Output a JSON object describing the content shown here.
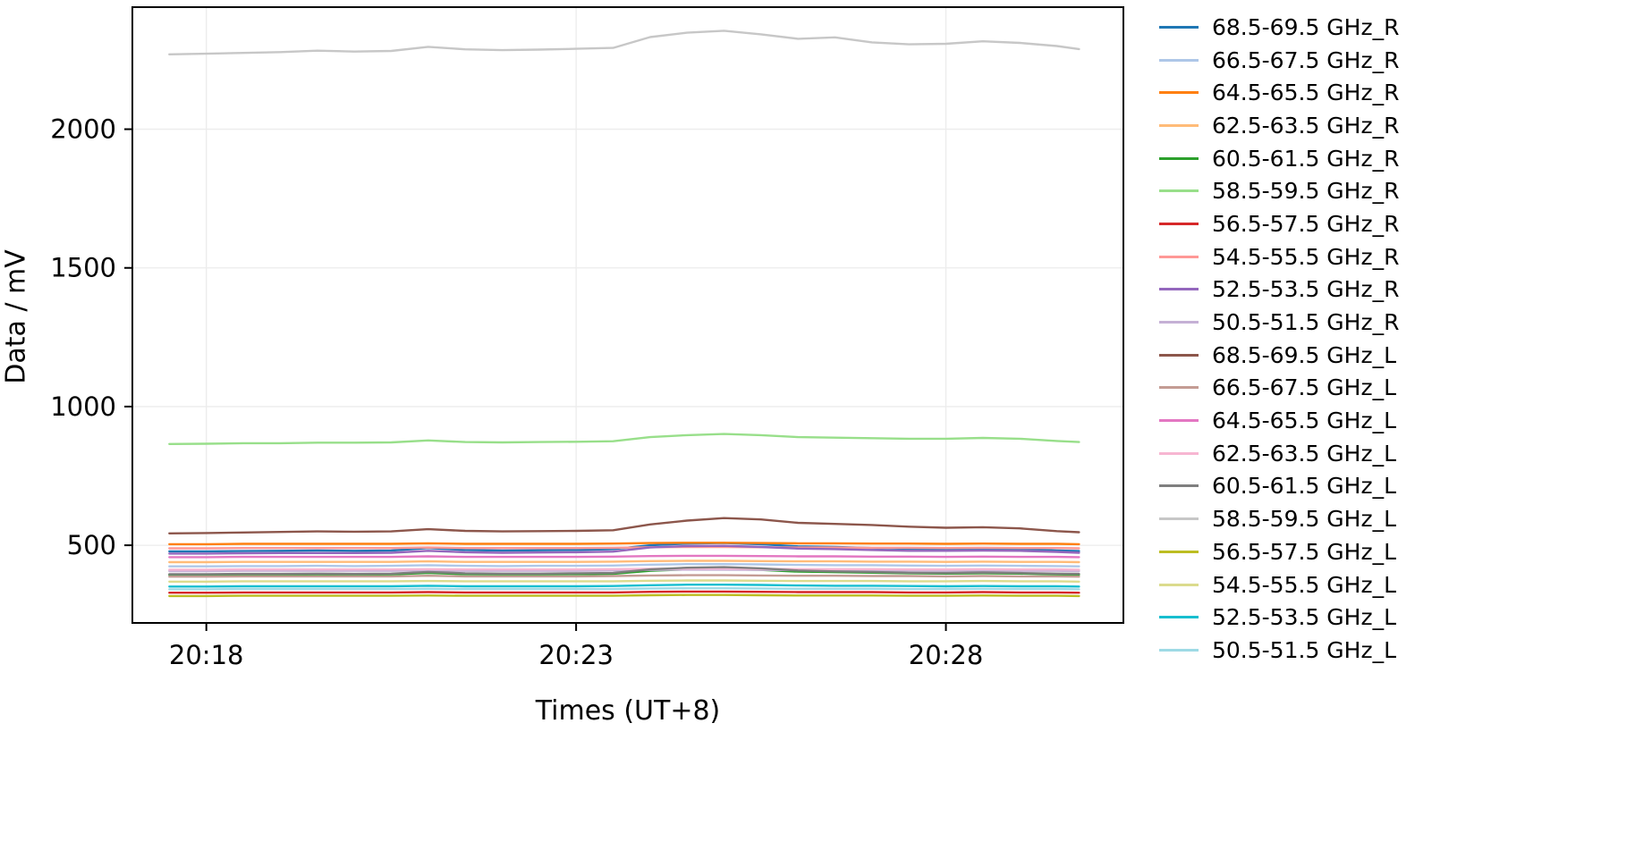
{
  "chart_data": {
    "type": "line",
    "title": "",
    "xlabel": "Times (UT+8)",
    "ylabel": "Data / mV",
    "grid": true,
    "legend_position": "right-outside",
    "x_unit": "minutes after 20:00 (UT+8)",
    "x_range": [
      17.0,
      30.4
    ],
    "y_range": [
      220,
      2440
    ],
    "x_ticks": [
      {
        "t": 18,
        "label": "20:18"
      },
      {
        "t": 23,
        "label": "20:23"
      },
      {
        "t": 28,
        "label": "20:28"
      }
    ],
    "y_ticks": [
      500,
      1000,
      1500,
      2000
    ],
    "x": [
      17.5,
      18,
      18.5,
      19,
      19.5,
      20,
      20.5,
      21,
      21.5,
      22,
      22.5,
      23,
      23.5,
      24,
      24.5,
      25,
      25.5,
      26,
      26.5,
      27,
      27.5,
      28,
      28.5,
      29,
      29.5,
      29.8
    ],
    "series": [
      {
        "name": "68.5-69.5 GHz_R",
        "color": "#1f77b4",
        "values": [
          478,
          478,
          479,
          480,
          481,
          480,
          481,
          490,
          483,
          481,
          482,
          483,
          486,
          500,
          506,
          508,
          504,
          496,
          494,
          490,
          487,
          486,
          488,
          486,
          481,
          479
        ]
      },
      {
        "name": "66.5-67.5 GHz_R",
        "color": "#aec7e8",
        "values": [
          424,
          424,
          425,
          425,
          426,
          425,
          426,
          428,
          426,
          425,
          426,
          426,
          427,
          430,
          432,
          432,
          431,
          429,
          428,
          428,
          427,
          426,
          427,
          426,
          425,
          424
        ]
      },
      {
        "name": "64.5-65.5 GHz_R",
        "color": "#ff7f0e",
        "values": [
          504,
          504,
          505,
          505,
          505,
          505,
          505,
          507,
          505,
          505,
          505,
          505,
          506,
          508,
          509,
          509,
          508,
          507,
          507,
          506,
          506,
          505,
          506,
          505,
          505,
          504
        ]
      },
      {
        "name": "62.5-63.5 GHz_R",
        "color": "#ffbb78",
        "values": [
          439,
          439,
          440,
          440,
          440,
          440,
          440,
          442,
          440,
          440,
          440,
          440,
          441,
          443,
          444,
          444,
          443,
          442,
          442,
          441,
          441,
          440,
          441,
          440,
          440,
          439
        ]
      },
      {
        "name": "60.5-61.5 GHz_R",
        "color": "#2ca02c",
        "values": [
          393,
          393,
          394,
          394,
          395,
          394,
          395,
          400,
          396,
          395,
          395,
          396,
          397,
          408,
          413,
          414,
          411,
          405,
          403,
          401,
          399,
          398,
          399,
          398,
          395,
          394
        ]
      },
      {
        "name": "58.5-59.5 GHz_R",
        "color": "#98df8a",
        "values": [
          865,
          866,
          868,
          868,
          870,
          870,
          871,
          878,
          872,
          871,
          872,
          873,
          875,
          890,
          897,
          901,
          897,
          890,
          888,
          886,
          884,
          884,
          887,
          884,
          876,
          872
        ]
      },
      {
        "name": "56.5-57.5 GHz_R",
        "color": "#d62728",
        "values": [
          329,
          329,
          330,
          330,
          330,
          330,
          330,
          331,
          330,
          330,
          330,
          330,
          330,
          332,
          333,
          333,
          332,
          331,
          331,
          331,
          330,
          330,
          331,
          330,
          330,
          329
        ]
      },
      {
        "name": "54.5-55.5 GHz_R",
        "color": "#ff9896",
        "values": [
          489,
          489,
          490,
          490,
          490,
          490,
          490,
          492,
          490,
          490,
          490,
          490,
          491,
          493,
          494,
          494,
          493,
          492,
          492,
          491,
          491,
          490,
          491,
          490,
          490,
          489
        ]
      },
      {
        "name": "52.5-53.5 GHz_R",
        "color": "#9467bd",
        "values": [
          470,
          470,
          471,
          472,
          472,
          472,
          473,
          480,
          475,
          473,
          474,
          475,
          477,
          492,
          497,
          498,
          494,
          488,
          486,
          483,
          480,
          480,
          481,
          480,
          476,
          473
        ]
      },
      {
        "name": "50.5-51.5 GHz_R",
        "color": "#c5b0d5",
        "values": [
          407,
          407,
          408,
          408,
          408,
          408,
          408,
          410,
          408,
          408,
          408,
          408,
          409,
          411,
          412,
          412,
          411,
          410,
          410,
          409,
          409,
          408,
          409,
          408,
          408,
          407
        ]
      },
      {
        "name": "68.5-69.5 GHz_L",
        "color": "#8c564b",
        "values": [
          543,
          544,
          546,
          548,
          550,
          549,
          550,
          558,
          552,
          550,
          551,
          552,
          554,
          575,
          589,
          598,
          593,
          581,
          577,
          573,
          567,
          563,
          565,
          561,
          551,
          547
        ]
      },
      {
        "name": "66.5-67.5 GHz_L",
        "color": "#c49c94",
        "values": [
          387,
          387,
          388,
          388,
          388,
          388,
          388,
          390,
          388,
          388,
          388,
          388,
          389,
          391,
          392,
          392,
          391,
          390,
          390,
          389,
          389,
          388,
          389,
          388,
          388,
          387
        ]
      },
      {
        "name": "64.5-65.5 GHz_L",
        "color": "#e377c2",
        "values": [
          457,
          457,
          458,
          458,
          458,
          458,
          458,
          460,
          458,
          458,
          458,
          458,
          459,
          461,
          462,
          462,
          461,
          460,
          460,
          459,
          459,
          458,
          459,
          458,
          458,
          457
        ]
      },
      {
        "name": "62.5-63.5 GHz_L",
        "color": "#f7b6d2",
        "values": [
          412,
          412,
          413,
          413,
          413,
          413,
          413,
          414,
          413,
          413,
          413,
          413,
          414,
          415,
          416,
          416,
          415,
          414,
          414,
          414,
          413,
          413,
          414,
          413,
          413,
          412
        ]
      },
      {
        "name": "60.5-61.5 GHz_L",
        "color": "#7f7f7f",
        "values": [
          396,
          396,
          397,
          397,
          398,
          397,
          398,
          404,
          399,
          398,
          398,
          399,
          400,
          413,
          419,
          421,
          417,
          409,
          406,
          404,
          401,
          400,
          402,
          400,
          398,
          397
        ]
      },
      {
        "name": "58.5-59.5 GHz_L",
        "color": "#c7c7c7",
        "values": [
          2270,
          2272,
          2275,
          2278,
          2283,
          2280,
          2282,
          2297,
          2288,
          2285,
          2287,
          2290,
          2293,
          2332,
          2348,
          2355,
          2342,
          2326,
          2331,
          2313,
          2306,
          2308,
          2317,
          2311,
          2300,
          2289
        ]
      },
      {
        "name": "56.5-57.5 GHz_L",
        "color": "#bcbd22",
        "values": [
          317,
          317,
          318,
          318,
          318,
          318,
          318,
          319,
          318,
          318,
          318,
          318,
          318,
          320,
          321,
          321,
          320,
          319,
          319,
          319,
          318,
          318,
          319,
          318,
          318,
          317
        ]
      },
      {
        "name": "54.5-55.5 GHz_L",
        "color": "#dbdb8d",
        "values": [
          369,
          369,
          370,
          370,
          370,
          370,
          370,
          371,
          370,
          370,
          370,
          370,
          370,
          372,
          373,
          373,
          372,
          371,
          371,
          371,
          370,
          370,
          371,
          370,
          370,
          369
        ]
      },
      {
        "name": "52.5-53.5 GHz_L",
        "color": "#17becf",
        "values": [
          351,
          351,
          352,
          352,
          352,
          352,
          352,
          354,
          352,
          352,
          352,
          352,
          353,
          356,
          358,
          358,
          357,
          355,
          354,
          354,
          353,
          352,
          353,
          352,
          352,
          351
        ]
      },
      {
        "name": "50.5-51.5 GHz_L",
        "color": "#9edae5",
        "values": [
          341,
          341,
          342,
          342,
          342,
          342,
          342,
          343,
          342,
          342,
          342,
          342,
          342,
          344,
          345,
          345,
          344,
          343,
          343,
          343,
          342,
          342,
          343,
          342,
          342,
          341
        ]
      }
    ],
    "style": {
      "grid_color": "#ececec",
      "border_color": "#000000",
      "line_width": 2.4
    }
  }
}
